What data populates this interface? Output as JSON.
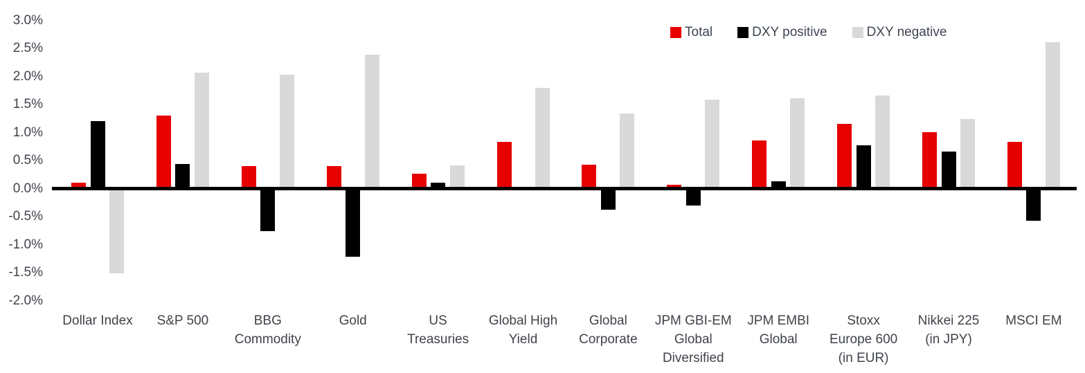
{
  "chart_data": {
    "type": "bar",
    "title": "",
    "xlabel": "",
    "ylabel": "",
    "grid": false,
    "legend_position": "top-right",
    "y_axis": {
      "min": -2.0,
      "max": 3.0,
      "step": 0.5,
      "tick_labels": [
        "3.0%",
        "2.5%",
        "2.0%",
        "1.5%",
        "1.0%",
        "0.5%",
        "0.0%",
        "-0.5%",
        "-1.0%",
        "-1.5%",
        "-2.0%"
      ]
    },
    "categories": [
      "Dollar Index",
      "S&P 500",
      "BBG Commodity",
      "Gold",
      "US Treasuries",
      "Global High Yield",
      "Global Corporate",
      "JPM GBI-EM Global Diversified",
      "JPM EMBI Global",
      "Stoxx Europe 600 (in EUR)",
      "Nikkei 225 (in JPY)",
      "MSCI EM"
    ],
    "category_label_lines": [
      [
        "Dollar Index"
      ],
      [
        "S&P 500"
      ],
      [
        "BBG",
        "Commodity"
      ],
      [
        "Gold"
      ],
      [
        "US",
        "Treasuries"
      ],
      [
        "Global High",
        "Yield"
      ],
      [
        "Global",
        "Corporate"
      ],
      [
        "JPM GBI-EM",
        "Global",
        "Diversified"
      ],
      [
        "JPM EMBI",
        "Global"
      ],
      [
        "Stoxx",
        "Europe 600",
        "(in EUR)"
      ],
      [
        "Nikkei 225",
        "(in JPY)"
      ],
      [
        "MSCI EM"
      ]
    ],
    "series": [
      {
        "name": "Total",
        "color": "#e60000",
        "values": [
          0.1,
          1.3,
          0.4,
          0.4,
          0.26,
          0.83,
          0.42,
          0.06,
          0.85,
          1.15,
          1.0,
          0.83
        ]
      },
      {
        "name": "DXY positive",
        "color": "#000000",
        "values": [
          1.2,
          0.43,
          -0.76,
          -1.22,
          0.1,
          0.0,
          -0.38,
          -0.31,
          0.12,
          0.76,
          0.66,
          -0.58
        ]
      },
      {
        "name": "DXY negative",
        "color": "#d9d9d9",
        "values": [
          -1.52,
          2.06,
          2.03,
          2.38,
          0.41,
          1.79,
          1.33,
          1.58,
          1.61,
          1.65,
          1.23,
          2.6
        ]
      }
    ]
  }
}
